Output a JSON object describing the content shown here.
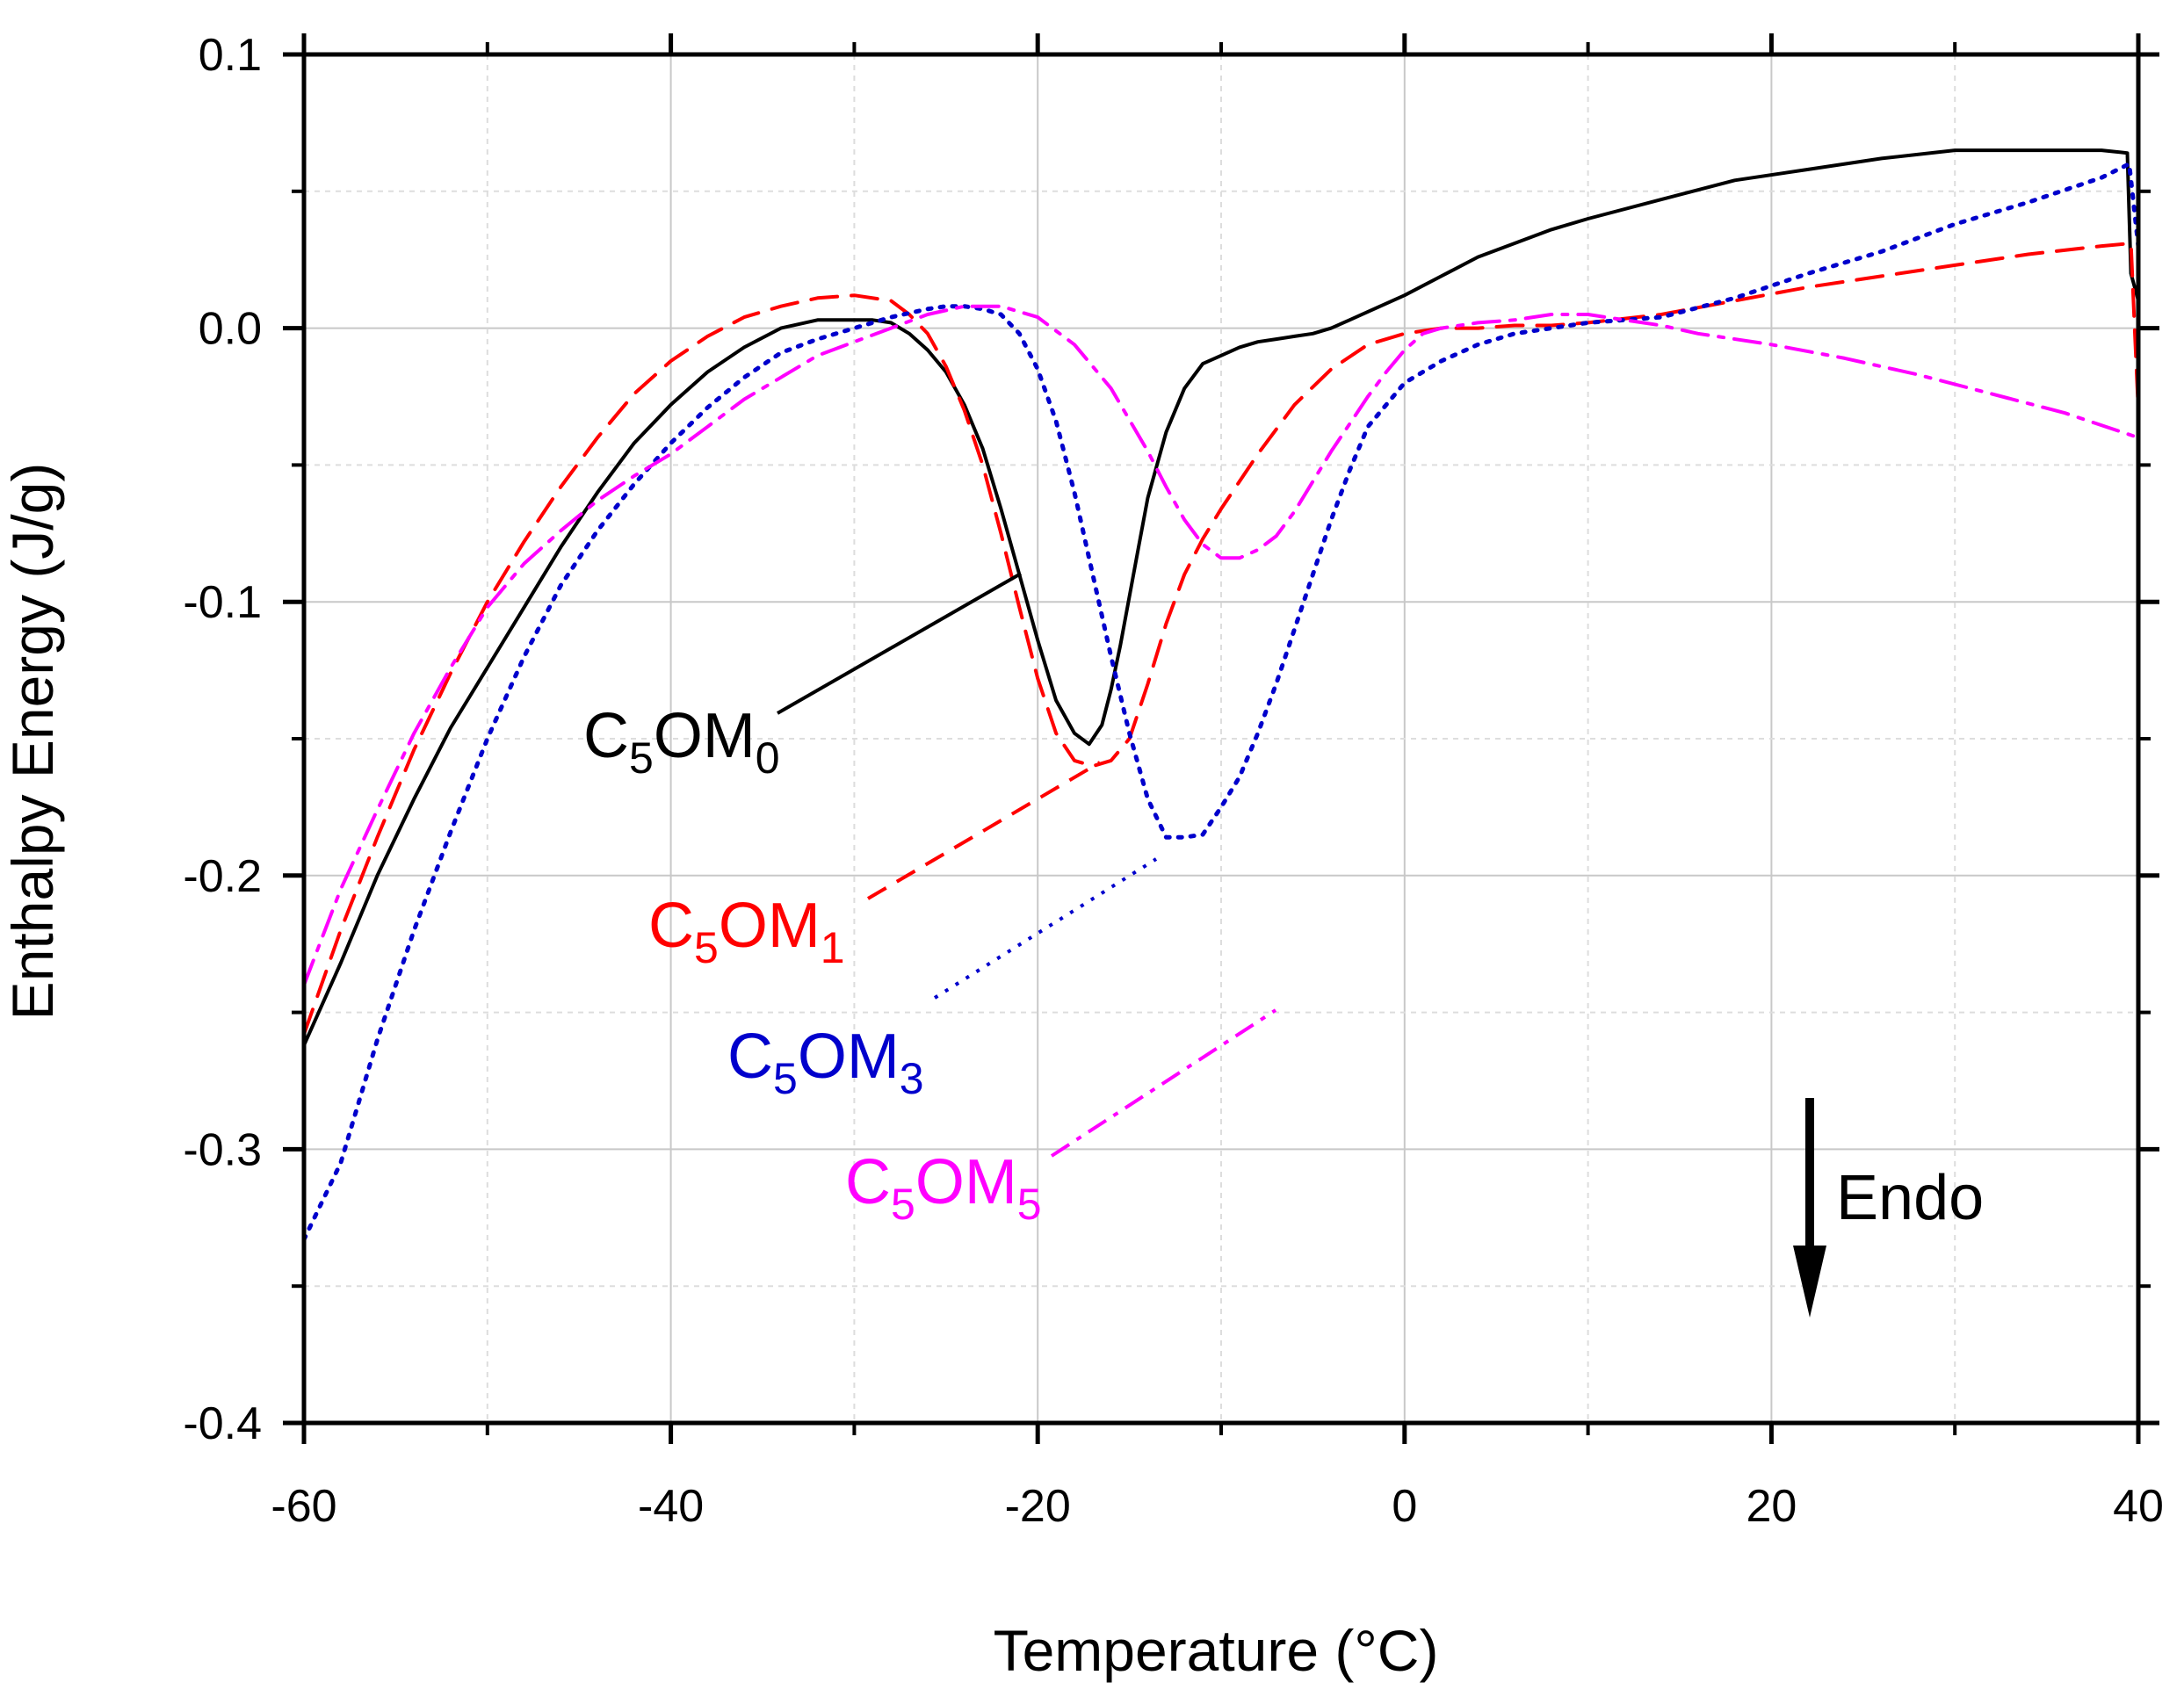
{
  "chart_data": {
    "type": "line",
    "title": "",
    "xlabel": "Temperature (°C)",
    "ylabel": "Enthalpy Energy (J/g)",
    "xlim": [
      -60,
      40
    ],
    "ylim": [
      -0.4,
      0.1
    ],
    "xticks": [
      "-60",
      "-40",
      "-20",
      "0",
      "20",
      "40"
    ],
    "yticks": [
      "0.1",
      "0.0",
      "-0.1",
      "-0.2",
      "-0.3",
      "-0.4"
    ],
    "grid": true,
    "annotation": {
      "text": "Endo",
      "arrow_direction": "down"
    },
    "series": [
      {
        "name": "C5OM0",
        "label_main": "C",
        "label_sub1": "5",
        "label_mid": "OM",
        "label_sub2": "0",
        "color": "#000000",
        "style": "solid",
        "x": [
          -60,
          -58,
          -56,
          -54,
          -52,
          -50,
          -48,
          -46,
          -44,
          -42,
          -40,
          -38,
          -36,
          -34,
          -32,
          -31,
          -30,
          -29,
          -28,
          -27,
          -26,
          -25,
          -24,
          -23,
          -22,
          -21,
          -20,
          -19,
          -18,
          -17.2,
          -16.5,
          -16,
          -15.5,
          -15,
          -14.5,
          -14,
          -13,
          -12,
          -11,
          -10,
          -9,
          -8,
          -7,
          -6,
          -5,
          -4,
          -3,
          -2,
          0,
          2,
          4,
          6,
          8,
          10,
          14,
          18,
          22,
          26,
          30,
          34,
          38,
          39.4,
          39.6,
          40
        ],
        "values": [
          -0.262,
          -0.232,
          -0.2,
          -0.172,
          -0.146,
          -0.124,
          -0.102,
          -0.08,
          -0.06,
          -0.042,
          -0.028,
          -0.016,
          -0.007,
          0.0,
          0.003,
          0.003,
          0.003,
          0.003,
          0.002,
          -0.002,
          -0.008,
          -0.016,
          -0.028,
          -0.044,
          -0.066,
          -0.09,
          -0.114,
          -0.136,
          -0.148,
          -0.152,
          -0.145,
          -0.132,
          -0.116,
          -0.098,
          -0.08,
          -0.062,
          -0.038,
          -0.022,
          -0.013,
          -0.01,
          -0.007,
          -0.005,
          -0.004,
          -0.003,
          -0.002,
          0.0,
          0.003,
          0.006,
          0.012,
          0.019,
          0.026,
          0.031,
          0.036,
          0.04,
          0.047,
          0.054,
          0.058,
          0.062,
          0.065,
          0.065,
          0.065,
          0.064,
          0.02,
          0.01
        ]
      },
      {
        "name": "C5OM1",
        "label_main": "C",
        "label_sub1": "5",
        "label_mid": "OM",
        "label_sub2": "1",
        "color": "#ff0000",
        "style": "dashed",
        "x": [
          -60,
          -58,
          -56,
          -54,
          -52,
          -50,
          -48,
          -46,
          -44,
          -42,
          -40,
          -38,
          -36,
          -34,
          -32,
          -30,
          -28,
          -27,
          -26,
          -25,
          -24,
          -23,
          -22,
          -21,
          -20,
          -19,
          -18,
          -17,
          -16,
          -15,
          -14,
          -13,
          -12,
          -11,
          -10,
          -8,
          -6,
          -4,
          -2,
          0,
          2,
          4,
          6,
          8,
          10,
          14,
          18,
          22,
          26,
          30,
          34,
          38,
          39.6,
          39.8,
          40
        ],
        "values": [
          -0.258,
          -0.22,
          -0.186,
          -0.154,
          -0.126,
          -0.1,
          -0.078,
          -0.058,
          -0.04,
          -0.024,
          -0.012,
          -0.003,
          0.004,
          0.008,
          0.011,
          0.012,
          0.01,
          0.005,
          -0.002,
          -0.014,
          -0.03,
          -0.05,
          -0.075,
          -0.102,
          -0.128,
          -0.148,
          -0.158,
          -0.16,
          -0.158,
          -0.15,
          -0.13,
          -0.108,
          -0.09,
          -0.077,
          -0.066,
          -0.046,
          -0.028,
          -0.015,
          -0.006,
          -0.002,
          0.0,
          0.0,
          0.001,
          0.001,
          0.002,
          0.005,
          0.01,
          0.015,
          0.019,
          0.023,
          0.027,
          0.03,
          0.031,
          0.0,
          -0.03
        ]
      },
      {
        "name": "C5OM3",
        "label_main": "C",
        "label_sub1": "5",
        "label_mid": "OM",
        "label_sub2": "3",
        "color": "#0000cc",
        "style": "dotted",
        "x": [
          -60,
          -58,
          -56,
          -54,
          -52,
          -50,
          -48,
          -46,
          -44,
          -42,
          -40,
          -38,
          -36,
          -34,
          -32,
          -30,
          -28,
          -26,
          -25,
          -24,
          -23,
          -22,
          -21,
          -20,
          -19,
          -18,
          -17,
          -16,
          -15,
          -14,
          -13,
          -12,
          -11,
          -10,
          -9,
          -8,
          -7,
          -6,
          -5,
          -4,
          -3,
          -2,
          0,
          2,
          4,
          6,
          8,
          10,
          14,
          18,
          22,
          26,
          30,
          34,
          38,
          39.5,
          40
        ],
        "values": [
          -0.333,
          -0.305,
          -0.26,
          -0.22,
          -0.184,
          -0.15,
          -0.12,
          -0.094,
          -0.074,
          -0.057,
          -0.042,
          -0.029,
          -0.018,
          -0.009,
          -0.004,
          0.0,
          0.004,
          0.007,
          0.008,
          0.008,
          0.007,
          0.005,
          -0.002,
          -0.015,
          -0.034,
          -0.06,
          -0.09,
          -0.12,
          -0.148,
          -0.172,
          -0.186,
          -0.186,
          -0.185,
          -0.175,
          -0.164,
          -0.148,
          -0.13,
          -0.11,
          -0.09,
          -0.07,
          -0.052,
          -0.036,
          -0.02,
          -0.012,
          -0.006,
          -0.002,
          0.0,
          0.002,
          0.004,
          0.011,
          0.02,
          0.028,
          0.038,
          0.046,
          0.055,
          0.06,
          0.03
        ]
      },
      {
        "name": "C5OM5",
        "label_main": "C",
        "label_sub1": "5",
        "label_mid": "OM",
        "label_sub2": "5",
        "color": "#ff00ff",
        "style": "dashdot",
        "x": [
          -60,
          -58,
          -56,
          -54,
          -52,
          -50,
          -48,
          -46,
          -44,
          -42,
          -40,
          -38,
          -36,
          -34,
          -32,
          -30,
          -28,
          -26,
          -24,
          -22,
          -20,
          -18,
          -16,
          -14,
          -13,
          -12,
          -11,
          -10,
          -9,
          -8,
          -7,
          -6,
          -5,
          -4,
          -3,
          -2,
          -1,
          0,
          1,
          2,
          4,
          6,
          8,
          10,
          12,
          14,
          16,
          20,
          24,
          28,
          32,
          36,
          40
        ],
        "values": [
          -0.24,
          -0.205,
          -0.176,
          -0.148,
          -0.124,
          -0.102,
          -0.086,
          -0.074,
          -0.063,
          -0.054,
          -0.046,
          -0.036,
          -0.026,
          -0.018,
          -0.01,
          -0.005,
          0.0,
          0.005,
          0.008,
          0.008,
          0.004,
          -0.006,
          -0.022,
          -0.045,
          -0.058,
          -0.07,
          -0.079,
          -0.084,
          -0.084,
          -0.081,
          -0.076,
          -0.067,
          -0.056,
          -0.045,
          -0.035,
          -0.025,
          -0.016,
          -0.008,
          -0.002,
          0.0,
          0.002,
          0.003,
          0.005,
          0.005,
          0.003,
          0.001,
          -0.002,
          -0.006,
          -0.011,
          -0.017,
          -0.024,
          -0.031,
          -0.04
        ]
      }
    ]
  }
}
